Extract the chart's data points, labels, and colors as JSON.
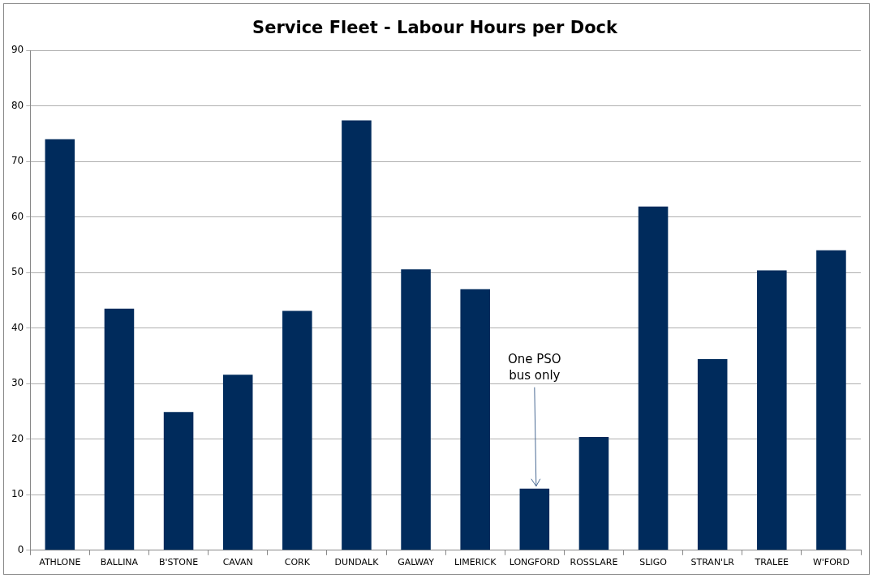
{
  "chart_data": {
    "type": "bar",
    "title": "Service Fleet - Labour Hours per Dock",
    "categories": [
      "ATHLONE",
      "BALLINA",
      "B'STONE",
      "CAVAN",
      "CORK",
      "DUNDALK",
      "GALWAY",
      "LIMERICK",
      "LONGFORD",
      "ROSSLARE",
      "SLIGO",
      "STRAN'LR",
      "TRALEE",
      "W'FORD"
    ],
    "values": [
      74.0,
      43.5,
      24.9,
      31.6,
      43.1,
      77.4,
      50.6,
      47.0,
      11.1,
      20.4,
      61.9,
      34.4,
      50.4,
      54.0
    ],
    "color": "#002b5c",
    "ylim": [
      0,
      90
    ],
    "yticks": [
      0,
      10,
      20,
      30,
      40,
      50,
      60,
      70,
      80,
      90
    ],
    "grid": "y",
    "annotations": [
      {
        "text": "One PSO bus only",
        "x": "LONGFORD",
        "y": 11.1
      }
    ]
  }
}
